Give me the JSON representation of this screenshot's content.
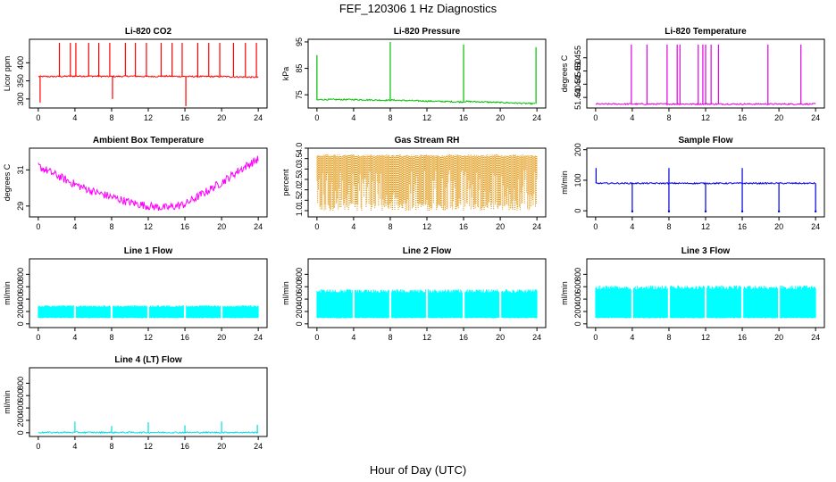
{
  "figure": {
    "title": "FEF_120306  1 Hz Diagnostics",
    "xlabel": "Hour of Day (UTC)"
  },
  "chart_data": [
    {
      "type": "line",
      "title": "Li-820 CO2",
      "ylabel": "Licor ppm",
      "color": "#ff0000",
      "xlim": [
        0,
        24
      ],
      "xticks": [
        0,
        4,
        8,
        12,
        16,
        20,
        24
      ],
      "ylim": [
        275,
        465
      ],
      "yticks": [
        300,
        350,
        400
      ],
      "series": [
        {
          "x": [
            0,
            2,
            4,
            6,
            8,
            10,
            12,
            14,
            16,
            18,
            20,
            22,
            24
          ],
          "y": [
            362,
            362,
            363,
            363,
            362,
            363,
            362,
            363,
            362,
            362,
            362,
            361,
            360
          ]
        }
      ],
      "spikes": [
        {
          "x": 0.2,
          "y": 290
        },
        {
          "x": 2.3,
          "y": 455
        },
        {
          "x": 3.5,
          "y": 455
        },
        {
          "x": 4.1,
          "y": 455
        },
        {
          "x": 5.5,
          "y": 455
        },
        {
          "x": 6.6,
          "y": 455
        },
        {
          "x": 7.8,
          "y": 455
        },
        {
          "x": 8.1,
          "y": 300
        },
        {
          "x": 9.5,
          "y": 455
        },
        {
          "x": 10.6,
          "y": 455
        },
        {
          "x": 11.8,
          "y": 455
        },
        {
          "x": 13.4,
          "y": 455
        },
        {
          "x": 14.6,
          "y": 455
        },
        {
          "x": 15.7,
          "y": 455
        },
        {
          "x": 16.1,
          "y": 280
        },
        {
          "x": 17.4,
          "y": 455
        },
        {
          "x": 18.6,
          "y": 455
        },
        {
          "x": 19.8,
          "y": 455
        },
        {
          "x": 21.3,
          "y": 455
        },
        {
          "x": 22.6,
          "y": 455
        },
        {
          "x": 23.8,
          "y": 455
        }
      ]
    },
    {
      "type": "line",
      "title": "Li-820 Pressure",
      "ylabel": "kPa",
      "color": "#00c000",
      "xlim": [
        0,
        24
      ],
      "xticks": [
        0,
        4,
        8,
        12,
        16,
        20,
        24
      ],
      "ylim": [
        70,
        96
      ],
      "yticks": [
        75,
        85,
        95
      ],
      "series": [
        {
          "x": [
            0,
            0.5,
            4,
            7.9,
            8.1,
            12,
            15.9,
            16.1,
            20,
            23.8
          ],
          "y": [
            73,
            73.2,
            73.2,
            72.9,
            73,
            72.6,
            72.3,
            72.5,
            72.1,
            71.6
          ]
        }
      ],
      "spikes": [
        {
          "x": 0,
          "y": 90
        },
        {
          "x": 8,
          "y": 95
        },
        {
          "x": 16,
          "y": 94
        },
        {
          "x": 23.9,
          "y": 93
        }
      ]
    },
    {
      "type": "line",
      "title": "Li-820 Temperature",
      "ylabel": "degrees C",
      "color": "#e000e0",
      "xlim": [
        0,
        24
      ],
      "xticks": [
        0,
        4,
        8,
        12,
        16,
        20,
        24
      ],
      "ylim": [
        51.436,
        51.462
      ],
      "yticks": [
        51.44,
        51.445,
        51.45,
        51.455
      ],
      "series": [
        {
          "x": [
            0,
            24
          ],
          "y": [
            51.4375,
            51.4375
          ]
        }
      ],
      "spikes": [
        {
          "x": 3.9,
          "y": 51.46
        },
        {
          "x": 5.6,
          "y": 51.46
        },
        {
          "x": 7.8,
          "y": 51.46
        },
        {
          "x": 8.9,
          "y": 51.46
        },
        {
          "x": 9.2,
          "y": 51.46
        },
        {
          "x": 11.2,
          "y": 51.46
        },
        {
          "x": 11.7,
          "y": 51.46
        },
        {
          "x": 12.0,
          "y": 51.46
        },
        {
          "x": 12.6,
          "y": 51.46
        },
        {
          "x": 13.4,
          "y": 51.46
        },
        {
          "x": 18.8,
          "y": 51.46
        },
        {
          "x": 22.4,
          "y": 51.46
        }
      ]
    },
    {
      "type": "line",
      "title": "Ambient Box Temperature",
      "ylabel": "degrees C",
      "color": "#ff00ff",
      "xlim": [
        0,
        24
      ],
      "xticks": [
        0,
        4,
        8,
        12,
        16,
        20,
        24
      ],
      "ylim": [
        28.4,
        32.2
      ],
      "yticks": [
        29,
        31
      ],
      "series": [
        {
          "x": [
            0,
            2,
            4,
            6,
            8,
            10,
            12,
            14,
            16,
            18,
            20,
            22,
            24
          ],
          "y": [
            31.2,
            30.7,
            30.2,
            29.8,
            29.5,
            29.2,
            29.0,
            28.9,
            29.1,
            29.7,
            30.3,
            31.0,
            31.6
          ]
        }
      ]
    },
    {
      "type": "line",
      "title": "Gas Stream RH",
      "ylabel": "percent",
      "color": "#e09000",
      "xlim": [
        0,
        24
      ],
      "xticks": [
        0,
        4,
        8,
        12,
        16,
        20,
        24
      ],
      "ylim": [
        0.7,
        4.0
      ],
      "yticks": [
        1.0,
        1.5,
        2.0,
        2.5,
        3.0,
        3.5,
        4.0
      ],
      "series": [
        {
          "x": [
            0,
            24
          ],
          "y": [
            3.7,
            3.7
          ]
        }
      ],
      "min_band": [
        1.0,
        3.0
      ]
    },
    {
      "type": "line",
      "title": "Sample Flow",
      "ylabel": "ml/min",
      "color": "#0000dd",
      "xlim": [
        0,
        24
      ],
      "xticks": [
        0,
        4,
        8,
        12,
        16,
        20,
        24
      ],
      "ylim": [
        -20,
        205
      ],
      "yticks": [
        0,
        100,
        200
      ],
      "series": [
        {
          "x": [
            0,
            24
          ],
          "y": [
            90,
            90
          ]
        }
      ],
      "spikes": [
        {
          "x": 0.05,
          "y": 140
        },
        {
          "x": 8.0,
          "y": 140
        },
        {
          "x": 16.0,
          "y": 140
        }
      ],
      "dips": [
        {
          "x": 4.0,
          "y": -2
        },
        {
          "x": 8.0,
          "y": -2
        },
        {
          "x": 12.0,
          "y": -2
        },
        {
          "x": 16.0,
          "y": -2
        },
        {
          "x": 20.0,
          "y": -2
        },
        {
          "x": 24.0,
          "y": -2
        }
      ]
    },
    {
      "type": "line",
      "title": "Line 1 Flow",
      "ylabel": "ml/min",
      "color": "#00ffff",
      "xlim": [
        0,
        24
      ],
      "xticks": [
        0,
        4,
        8,
        12,
        16,
        20,
        24
      ],
      "ylim": [
        -60,
        1050
      ],
      "yticks": [
        0,
        200,
        400,
        600,
        800
      ],
      "series": [
        {
          "x": [
            0,
            24
          ],
          "y": [
            200,
            200
          ]
        }
      ],
      "band": [
        90,
        300
      ],
      "gaps": [
        4.0,
        8.0,
        12.0,
        16.0,
        20.0
      ]
    },
    {
      "type": "line",
      "title": "Line 2 Flow",
      "ylabel": "ml/min",
      "color": "#00ffff",
      "xlim": [
        0,
        24
      ],
      "xticks": [
        0,
        4,
        8,
        12,
        16,
        20,
        24
      ],
      "ylim": [
        -60,
        1050
      ],
      "yticks": [
        0,
        200,
        400,
        600,
        800
      ],
      "series": [
        {
          "x": [
            0,
            24
          ],
          "y": [
            320,
            320
          ]
        }
      ],
      "band": [
        90,
        560
      ],
      "gaps": [
        4.0,
        8.0,
        12.0,
        16.0,
        20.0
      ]
    },
    {
      "type": "line",
      "title": "Line 3 Flow",
      "ylabel": "ml/min",
      "color": "#00ffff",
      "xlim": [
        0,
        24
      ],
      "xticks": [
        0,
        4,
        8,
        12,
        16,
        20,
        24
      ],
      "ylim": [
        -60,
        1050
      ],
      "yticks": [
        0,
        200,
        400,
        600,
        800
      ],
      "series": [
        {
          "x": [
            0,
            24
          ],
          "y": [
            350,
            350
          ]
        }
      ],
      "band": [
        90,
        620
      ],
      "gaps": [
        4.0,
        8.0,
        12.0,
        16.0,
        20.0
      ]
    },
    {
      "type": "line",
      "title": "Line 4 (LT) Flow",
      "ylabel": "ml/min",
      "color": "#00e0e0",
      "xlim": [
        0,
        24
      ],
      "xticks": [
        0,
        4,
        8,
        12,
        16,
        20,
        24
      ],
      "ylim": [
        -60,
        1050
      ],
      "yticks": [
        0,
        200,
        400,
        600,
        800
      ],
      "series": [
        {
          "x": [
            0,
            24
          ],
          "y": [
            5,
            5
          ]
        }
      ],
      "spikes": [
        {
          "x": 4.0,
          "y": 180
        },
        {
          "x": 8.0,
          "y": 110
        },
        {
          "x": 12.0,
          "y": 170
        },
        {
          "x": 16.0,
          "y": 120
        },
        {
          "x": 20.0,
          "y": 180
        },
        {
          "x": 23.9,
          "y": 130
        }
      ]
    }
  ]
}
